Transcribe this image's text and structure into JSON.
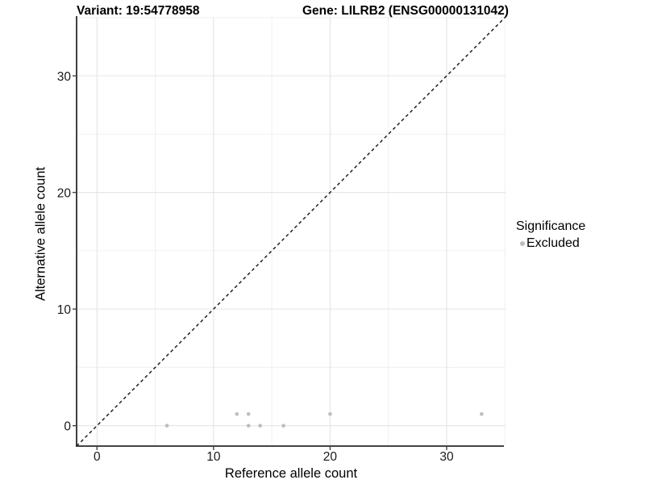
{
  "chart_data": {
    "type": "scatter",
    "title_left": "Variant: 19:54778958",
    "title_right": "Gene: LILRB2 (ENSG00000131042)",
    "xlabel": "Reference allele count",
    "ylabel": "Alternative allele count",
    "xlim": [
      -1.75,
      35.05
    ],
    "ylim": [
      -1.75,
      35.05
    ],
    "x_ticks": [
      0,
      10,
      20,
      30
    ],
    "y_ticks": [
      0,
      10,
      20,
      30
    ],
    "x_minor_gridlines": [
      5,
      15,
      25,
      35
    ],
    "y_minor_gridlines": [
      5,
      15,
      25,
      35
    ],
    "grid": "major and minor gridlines on white panel",
    "identity_line": {
      "type": "y = x diagonal",
      "style": "dashed",
      "color": "#111111"
    },
    "series": [
      {
        "name": "Excluded",
        "color": "#bdbdbd",
        "points": [
          [
            6,
            0
          ],
          [
            12,
            1
          ],
          [
            13,
            0
          ],
          [
            13,
            1
          ],
          [
            14,
            0
          ],
          [
            16,
            0
          ],
          [
            20,
            1
          ],
          [
            33,
            1
          ]
        ]
      }
    ],
    "legend": {
      "title": "Significance",
      "position": "right",
      "items": [
        {
          "label": "Excluded",
          "color": "#bdbdbd"
        }
      ]
    },
    "colors": {
      "background": "#ffffff",
      "grid_major": "#e4e4e4",
      "grid_minor": "#f0f0f0",
      "axis_line": "#2a2a2a",
      "tick_mark": "#444444",
      "tick_label": "#1a1a1a",
      "point": "#bdbdbd"
    }
  }
}
